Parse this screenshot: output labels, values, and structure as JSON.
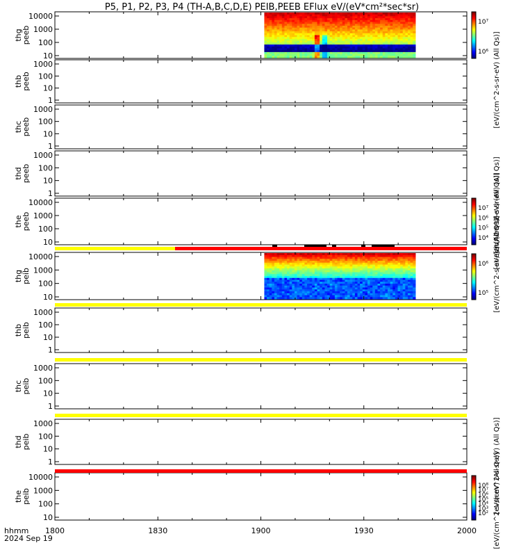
{
  "title": "P5, P1, P2, P3, P4 (TH-A,B,C,D,E) PEIB,PEEB EFlux eV/(eV*cm²*sec*sr)",
  "footer": {
    "time_label": "hhmm",
    "date_label": "2024 Sep 19"
  },
  "chart_data": {
    "type": "heatmap",
    "x_axis": {
      "range": [
        "18:00",
        "20:00"
      ],
      "ticks": [
        "1800",
        "1830",
        "1900",
        "1930",
        "2000"
      ]
    },
    "panels": [
      {
        "name": "thg peeb",
        "label": [
          "thg",
          "peeb"
        ],
        "y_ticks": [
          "10000",
          "1000",
          "100",
          "10"
        ],
        "data_span": [
          "19:01",
          "19:45"
        ],
        "colorbar": {
          "ticks": [
            "10⁷",
            "10⁶"
          ],
          "label": "[eV/(cm^2-s-sr-eV) (All Qs)]"
        }
      },
      {
        "name": "thb peeb",
        "label": [
          "thb",
          "peeb"
        ],
        "y_ticks": [
          "1000",
          "100",
          "10",
          "1"
        ]
      },
      {
        "name": "thc peeb",
        "label": [
          "thc",
          "peeb"
        ],
        "y_ticks": [
          "1000",
          "100",
          "10",
          "1"
        ]
      },
      {
        "name": "thd peeb",
        "label": [
          "thd",
          "peeb"
        ],
        "y_ticks": [
          "1000",
          "100",
          "10",
          "1"
        ],
        "colorbar": {
          "label": "[eV/(cm^2-s-sr-eV) (All Qs)]"
        }
      },
      {
        "name": "the peeb",
        "label": [
          "the",
          "peeb"
        ],
        "y_ticks": [
          "10000",
          "1000",
          "100",
          "10"
        ],
        "colorbar": {
          "ticks": [
            "10⁷",
            "10⁶",
            "10⁵",
            "10⁴"
          ],
          "label": "[eV/(cm^2-s-sr-eV) (All Qs)]"
        }
      },
      {
        "name": "thg peib",
        "label": [
          "thg",
          "peib"
        ],
        "y_ticks": [
          "10000",
          "1000",
          "100",
          "10"
        ],
        "data_span": [
          "19:01",
          "19:45"
        ],
        "colorbar": {
          "ticks": [
            "10⁶",
            "10⁵"
          ],
          "label": "[eV/(cm^2-s-sr-eV) (All Qs)]"
        }
      },
      {
        "name": "thb peib",
        "label": [
          "thb",
          "peib"
        ],
        "y_ticks": [
          "1000",
          "100",
          "10",
          "1"
        ]
      },
      {
        "name": "thc peib",
        "label": [
          "thc",
          "peib"
        ],
        "y_ticks": [
          "1000",
          "100",
          "10",
          "1"
        ]
      },
      {
        "name": "thd peib",
        "label": [
          "thd",
          "peib"
        ],
        "y_ticks": [
          "1000",
          "100",
          "10",
          "1"
        ],
        "colorbar": {
          "label": "[eV/(cm^2-s-sr-eV) (All Qs)]"
        }
      },
      {
        "name": "the peib",
        "label": [
          "the",
          "peib"
        ],
        "y_ticks": [
          "10000",
          "1000",
          "100",
          "10"
        ],
        "colorbar": {
          "ticks": [
            "10⁸",
            "10⁷",
            "10⁶",
            "10⁵",
            "10⁴",
            "10³",
            "10²"
          ],
          "label": "[eV/(cm^2-s-sr-eV) (All Qs)]"
        }
      }
    ],
    "mode_bars": [
      {
        "after_panel": "the peeb",
        "segments": [
          {
            "from": "18:00",
            "to": "18:35",
            "color": "#ffff00"
          },
          {
            "from": "18:35",
            "to": "20:00",
            "color": "#ff0000"
          }
        ]
      },
      {
        "after_panel": "thg peib",
        "segments": [
          {
            "from": "18:00",
            "to": "20:00",
            "color": "#ffff00"
          }
        ]
      },
      {
        "after_panel": "thb peib",
        "segments": [
          {
            "from": "18:00",
            "to": "20:00",
            "color": "#ffff00"
          }
        ]
      },
      {
        "after_panel": "thc peib",
        "segments": [
          {
            "from": "18:00",
            "to": "20:00",
            "color": "#ffff00"
          }
        ]
      },
      {
        "after_panel": "thd peib",
        "segments": [
          {
            "from": "18:00",
            "to": "20:00",
            "color": "#ff0000"
          }
        ]
      }
    ]
  }
}
